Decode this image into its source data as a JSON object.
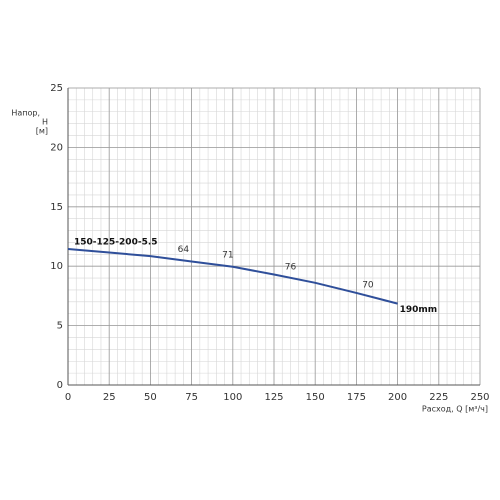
{
  "chart_data": {
    "type": "line",
    "xlabel": "Расход, Q [м³/ч]",
    "ylabel": [
      "Напор,",
      "H",
      "[м]"
    ],
    "x": [
      0,
      25,
      50,
      75,
      100,
      125,
      150,
      175,
      200
    ],
    "series": [
      {
        "name": "150-125-200-5.5",
        "color": "#2f4f9a",
        "values": [
          11.45,
          11.15,
          10.85,
          10.4,
          9.95,
          9.3,
          8.6,
          7.75,
          6.85
        ]
      }
    ],
    "curve_label": "190mm",
    "efficiency_labels": [
      {
        "x": 70,
        "value": 64
      },
      {
        "x": 97,
        "value": 71
      },
      {
        "x": 135,
        "value": 76
      },
      {
        "x": 182,
        "value": 70
      }
    ],
    "xlim": [
      0,
      250
    ],
    "xticks": [
      0,
      25,
      50,
      75,
      100,
      125,
      150,
      175,
      200,
      225,
      250
    ],
    "ylim": [
      0,
      25
    ],
    "yticks": [
      0,
      5,
      10,
      15,
      20,
      25
    ],
    "grid": true,
    "x_minor_step": 5,
    "y_minor_step": 1
  }
}
